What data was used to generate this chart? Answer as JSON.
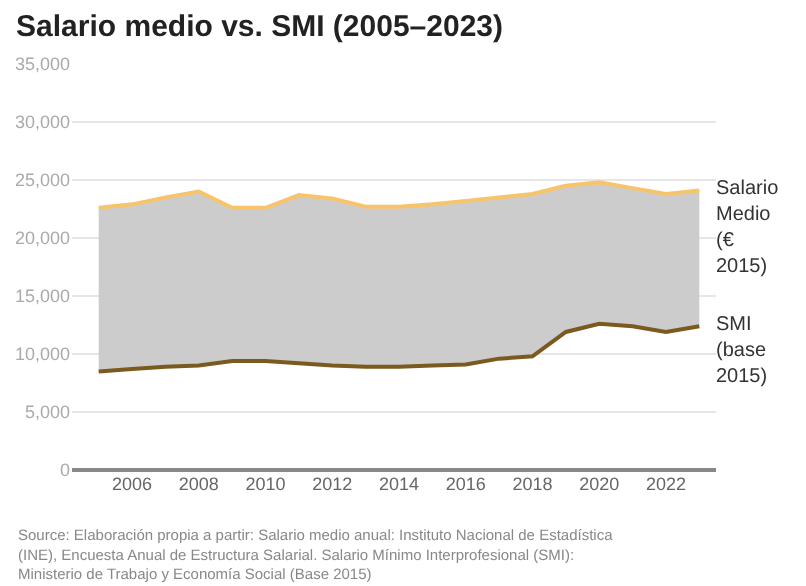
{
  "chart_data": {
    "type": "line",
    "title": "Salario medio vs. SMI (2005–2023)",
    "x": [
      2005,
      2006,
      2007,
      2008,
      2009,
      2010,
      2011,
      2012,
      2013,
      2014,
      2015,
      2016,
      2017,
      2018,
      2019,
      2020,
      2021,
      2022,
      2023
    ],
    "series": [
      {
        "name": "SMI (base 2015)",
        "color": "#7a5a1e",
        "values": [
          8500,
          8700,
          8900,
          9000,
          9400,
          9400,
          9200,
          9000,
          8900,
          8900,
          9000,
          9100,
          9600,
          9800,
          11900,
          12600,
          12400,
          11900,
          12400
        ]
      },
      {
        "name": "Salario Medio (€ 2015)",
        "type": "area",
        "color": "#f7c46c",
        "values": [
          22600,
          22900,
          23500,
          24000,
          22600,
          22600,
          23700,
          23400,
          22700,
          22700,
          22900,
          23200,
          23500,
          23800,
          24500,
          24800,
          24300,
          23800,
          24100
        ]
      }
    ],
    "xlim": [
      2004.2,
      2023.5
    ],
    "xticks": [
      2006,
      2008,
      2010,
      2012,
      2014,
      2016,
      2018,
      2020,
      2022
    ],
    "ylim": [
      0,
      35000
    ],
    "yticks": [
      {
        "value": 0,
        "label": "0"
      },
      {
        "value": 5000,
        "label": "5,000"
      },
      {
        "value": 10000,
        "label": "10,000"
      },
      {
        "value": 15000,
        "label": "15,000"
      },
      {
        "value": 20000,
        "label": "20,000"
      },
      {
        "value": 25000,
        "label": "25,000"
      },
      {
        "value": 30000,
        "label": "30,000"
      },
      {
        "value": 35000,
        "label": "35,000"
      }
    ],
    "grid": "y",
    "legend": false,
    "marker": "none",
    "line_style": "solid",
    "annotations": [
      "Source: Elaboración propia a partir: Salario medio anual: Instituto Nacional de Estadística (INE), Encuesta Anual de Estructura Salarial. Salario Mínimo Interprofesional (SMI): Ministerio de Trabajo y Economía Social (Base 2015)"
    ]
  }
}
